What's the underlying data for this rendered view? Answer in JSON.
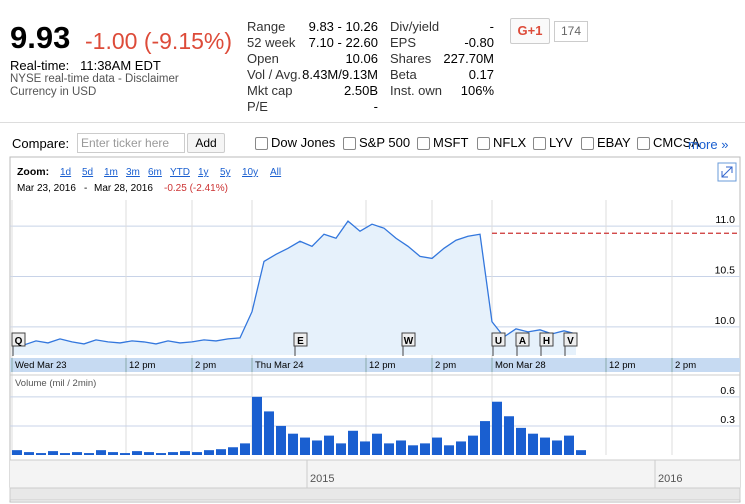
{
  "header": {
    "price": "9.93",
    "change": "-1.00 (-9.15%)",
    "realtime_label": "Real-time:",
    "realtime_time": "11:38AM EDT",
    "disclaimer": "NYSE real-time data - Disclaimer",
    "currency": "Currency in USD"
  },
  "stats_left": [
    [
      "Range",
      "9.83 - 10.26"
    ],
    [
      "52 week",
      "7.10 - 22.60"
    ],
    [
      "Open",
      "10.06"
    ],
    [
      "Vol / Avg.",
      "8.43M/9.13M"
    ],
    [
      "Mkt cap",
      "2.50B"
    ],
    [
      "P/E",
      "-"
    ]
  ],
  "stats_right": [
    [
      "Div/yield",
      "-"
    ],
    [
      "EPS",
      "-0.80"
    ],
    [
      "Shares",
      "227.70M"
    ],
    [
      "Beta",
      "0.17"
    ],
    [
      "Inst. own",
      "106%"
    ]
  ],
  "social": {
    "button": "G+1",
    "count": "174"
  },
  "compare": {
    "label": "Compare:",
    "placeholder": "Enter ticker here",
    "button": "Add",
    "options": [
      "Dow Jones",
      "S&P 500",
      "MSFT",
      "NFLX",
      "LYV",
      "EBAY",
      "CMCSA"
    ],
    "more": "more »"
  },
  "zoom": {
    "label": "Zoom:",
    "options": [
      "1d",
      "5d",
      "1m",
      "3m",
      "6m",
      "YTD",
      "1y",
      "5y",
      "10y",
      "All"
    ],
    "from": "Mar 23, 2016",
    "sep": "-",
    "to": "Mar 28, 2016",
    "change": "-0.25 (-2.41%)"
  },
  "chart_data": [
    {
      "type": "area",
      "color": "#3377dd",
      "fill": "#e6f1fb",
      "x": [
        0,
        2,
        4,
        6,
        8,
        10,
        12,
        14,
        16,
        18,
        20,
        22,
        24,
        26,
        28,
        30,
        32,
        34,
        36,
        38,
        40,
        42,
        44,
        46,
        48,
        50,
        52,
        54,
        56,
        58,
        60,
        62,
        64,
        66,
        68,
        70,
        72,
        74,
        76,
        78,
        80,
        82,
        84,
        86,
        88,
        90,
        92,
        94
      ],
      "values": [
        9.9,
        9.82,
        9.86,
        9.84,
        9.88,
        9.85,
        9.83,
        9.87,
        9.85,
        9.84,
        9.86,
        9.85,
        9.83,
        9.86,
        9.84,
        9.85,
        9.87,
        9.86,
        9.88,
        9.89,
        10.15,
        10.65,
        10.72,
        10.78,
        10.85,
        10.8,
        10.92,
        10.88,
        11.05,
        10.95,
        11.02,
        10.98,
        10.88,
        10.8,
        10.7,
        10.68,
        10.78,
        10.86,
        10.9,
        10.92,
        10.05,
        9.9,
        9.98,
        9.95,
        9.97,
        9.93,
        9.96,
        9.93
      ],
      "prev_close": 10.93,
      "prev_close_color": "#cc3333",
      "xlim": [
        0,
        120
      ],
      "ylim": [
        9.72,
        11.26
      ],
      "yticks": [
        {
          "value": 11,
          "label": "11.0"
        },
        {
          "value": 10.5,
          "label": "10.5"
        },
        {
          "value": 10,
          "label": "10.0"
        }
      ],
      "xticks": [
        {
          "value": 0,
          "label": "Wed Mar 23"
        },
        {
          "value": 19,
          "label": "12 pm"
        },
        {
          "value": 30,
          "label": "2 pm"
        },
        {
          "value": 40,
          "label": "Thu Mar 24"
        },
        {
          "value": 59,
          "label": "12 pm"
        },
        {
          "value": 70,
          "label": "2 pm"
        },
        {
          "value": 80,
          "label": "Mon Mar 28"
        },
        {
          "value": 99,
          "label": "12 pm"
        },
        {
          "value": 110,
          "label": "2 pm"
        }
      ],
      "annotations": [
        {
          "label": "Q",
          "x": 1
        },
        {
          "label": "E",
          "x": 48
        },
        {
          "label": "W",
          "x": 66
        },
        {
          "label": "U",
          "x": 81
        },
        {
          "label": "A",
          "x": 85
        },
        {
          "label": "H",
          "x": 89
        },
        {
          "label": "V",
          "x": 93
        }
      ],
      "grid": true
    },
    {
      "type": "bar",
      "title": "Volume (mil / 2min)",
      "color": "#1a5fd0",
      "x": [
        0,
        2,
        4,
        6,
        8,
        10,
        12,
        14,
        16,
        18,
        20,
        22,
        24,
        26,
        28,
        30,
        32,
        34,
        36,
        38,
        40,
        42,
        44,
        46,
        48,
        50,
        52,
        54,
        56,
        58,
        60,
        62,
        64,
        66,
        68,
        70,
        72,
        74,
        76,
        78,
        80,
        82,
        84,
        86,
        88,
        90,
        92,
        94
      ],
      "values": [
        0.05,
        0.03,
        0.02,
        0.04,
        0.02,
        0.03,
        0.02,
        0.05,
        0.03,
        0.02,
        0.04,
        0.03,
        0.02,
        0.03,
        0.04,
        0.03,
        0.05,
        0.06,
        0.08,
        0.12,
        0.6,
        0.45,
        0.3,
        0.22,
        0.18,
        0.15,
        0.2,
        0.12,
        0.25,
        0.14,
        0.22,
        0.12,
        0.15,
        0.1,
        0.12,
        0.18,
        0.1,
        0.14,
        0.2,
        0.35,
        0.55,
        0.4,
        0.28,
        0.22,
        0.18,
        0.15,
        0.2,
        0.05
      ],
      "xlim": [
        0,
        120
      ],
      "ylim": [
        0,
        0.64
      ],
      "yticks": [
        0.6,
        0.3
      ],
      "grid": true
    }
  ],
  "navigator": {
    "labels": [
      "2015",
      "2016"
    ]
  }
}
